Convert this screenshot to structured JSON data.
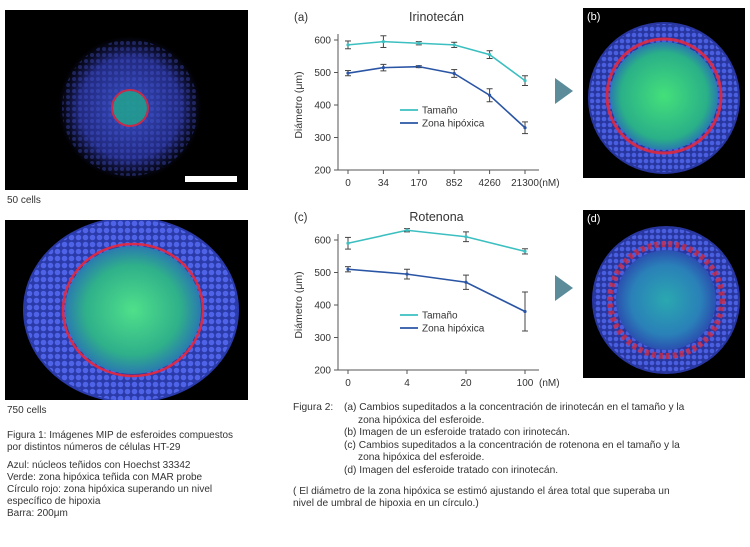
{
  "colors": {
    "teal": "#3cbfc0",
    "navy": "#2a55a5",
    "axis": "#555555",
    "arrow": "#5c8c99"
  },
  "micrographs": {
    "left_top_label": "50 cells",
    "left_bottom_label": "750 cells",
    "b_label": "(b)",
    "d_label": "(d)"
  },
  "figure1": {
    "title_line1": "Figura 1: Imágenes MIP de esferoides compuestos",
    "title_line2": "por distintos números de células HT-29",
    "legend": [
      "Azul: núcleos teñidos con Hoechst 33342",
      "Verde: zona hipóxica teñida con MAR probe",
      "Círculo rojo: zona hipóxica superando un nivel",
      "específico de hipoxia",
      "Barra: 200μm"
    ]
  },
  "figure2": {
    "label": "Figura 2:",
    "items": [
      "(a) Cambios supeditados a la concentración de irinotecán en el tamaño y la",
      "zona hipóxica del esferoide.",
      "(b) Imagen de un esferoide tratado con irinotecán.",
      "(c) Cambios supeditados a la concentración de rotenona en el tamaño y la",
      "zona hipóxica del esferoide.",
      "(d) Imagen del esferoide tratado con irinotecán."
    ],
    "note_line1": "( El diámetro de la zona hipóxica se estimó ajustando el área total que superaba un",
    "note_line2": "nivel de umbral de hipoxia en un círculo.)"
  },
  "chart_data": [
    {
      "type": "line",
      "panel": "(a)",
      "title": "Irinotecán",
      "ylabel": "Diámetro (μm)",
      "x_unit": "(nM)",
      "categories": [
        "0",
        "34",
        "170",
        "852",
        "4260",
        "21300"
      ],
      "ylim": [
        200,
        600
      ],
      "yticks": [
        200,
        300,
        400,
        500,
        600
      ],
      "legend_position": "center",
      "series": [
        {
          "name": "Tamaño",
          "color": "#3cbfc0",
          "values": [
            585,
            595,
            590,
            585,
            555,
            475
          ],
          "errors": [
            12,
            18,
            5,
            8,
            12,
            15
          ]
        },
        {
          "name": "Zona hipóxica",
          "color": "#2a55a5",
          "values": [
            498,
            515,
            518,
            497,
            430,
            330
          ],
          "errors": [
            8,
            10,
            3,
            12,
            20,
            18
          ]
        }
      ]
    },
    {
      "type": "line",
      "panel": "(c)",
      "title": "Rotenona",
      "ylabel": "Diámetro (μm)",
      "x_unit": "(nM)",
      "categories": [
        "0",
        "4",
        "20",
        "100"
      ],
      "ylim": [
        200,
        600
      ],
      "yticks": [
        200,
        300,
        400,
        500,
        600
      ],
      "legend_position": "center",
      "series": [
        {
          "name": "Tamaño",
          "color": "#3cbfc0",
          "values": [
            590,
            630,
            610,
            565
          ],
          "errors": [
            18,
            5,
            15,
            8
          ]
        },
        {
          "name": "Zona hipóxica",
          "color": "#2a55a5",
          "values": [
            510,
            495,
            470,
            380
          ],
          "errors": [
            8,
            15,
            22,
            60
          ]
        }
      ]
    }
  ]
}
